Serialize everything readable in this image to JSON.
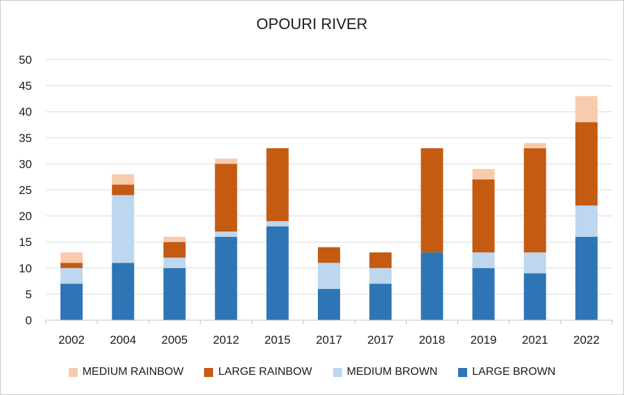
{
  "chart_data": {
    "type": "bar",
    "stacked": true,
    "title": "OPOURI RIVER",
    "xlabel": "",
    "ylabel": "",
    "ylim": [
      0,
      50
    ],
    "yticks": [
      0,
      5,
      10,
      15,
      20,
      25,
      30,
      35,
      40,
      45,
      50
    ],
    "grid": true,
    "legend_position": "bottom",
    "categories": [
      "2002",
      "2004",
      "2005",
      "2012",
      "2015",
      "2017",
      "2017",
      "2018",
      "2019",
      "2021",
      "2022"
    ],
    "series": [
      {
        "name": "LARGE BROWN",
        "color": "#2e75b6",
        "values": [
          7,
          11,
          10,
          16,
          18,
          6,
          7,
          13,
          10,
          9,
          16
        ]
      },
      {
        "name": "MEDIUM BROWN",
        "color": "#bdd7ee",
        "values": [
          3,
          13,
          2,
          1,
          1,
          5,
          3,
          0,
          3,
          4,
          6
        ]
      },
      {
        "name": "LARGE RAINBOW",
        "color": "#c55a11",
        "values": [
          1,
          2,
          3,
          13,
          14,
          3,
          3,
          20,
          14,
          20,
          16
        ]
      },
      {
        "name": "MEDIUM RAINBOW",
        "color": "#f8cbad",
        "values": [
          2,
          2,
          1,
          1,
          0,
          0,
          0,
          0,
          2,
          1,
          5
        ]
      }
    ],
    "legend_order": [
      "MEDIUM RAINBOW",
      "LARGE RAINBOW",
      "MEDIUM BROWN",
      "LARGE BROWN"
    ]
  }
}
